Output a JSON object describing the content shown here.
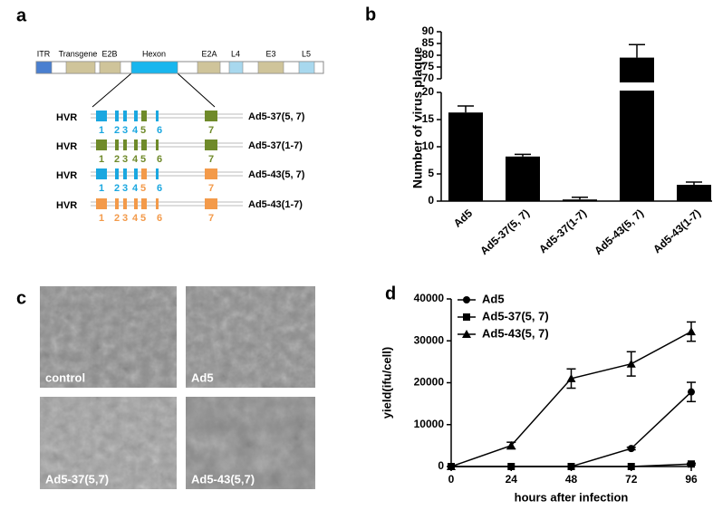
{
  "panels": {
    "a": {
      "letter": "a",
      "genome": [
        {
          "label": "ITR",
          "color": "#4a7fd0"
        },
        {
          "label": "Transgene",
          "color": "#cfc49a"
        },
        {
          "label": "E2B",
          "color": "#cfc49a"
        },
        {
          "label": "Hexon",
          "color": "#19b6ee"
        },
        {
          "label": "E2A",
          "color": "#cfc49a"
        },
        {
          "label": "L4",
          "color": "#a8d8ee"
        },
        {
          "label": "E3",
          "color": "#cfc49a"
        },
        {
          "label": "L5",
          "color": "#a8d8ee"
        }
      ],
      "constructs": [
        {
          "prefix": "HVR",
          "name": "Ad5-37(5, 7)",
          "hvrs": [
            {
              "label": "1",
              "color": "#1aa7e0"
            },
            {
              "label": "2",
              "color": "#1aa7e0"
            },
            {
              "label": "3",
              "color": "#1aa7e0"
            },
            {
              "label": "4",
              "color": "#1aa7e0"
            },
            {
              "label": "5",
              "color": "#6f8a2a"
            },
            {
              "label": "6",
              "color": "#1aa7e0"
            },
            {
              "label": "7",
              "color": "#6f8a2a"
            }
          ]
        },
        {
          "prefix": "HVR",
          "name": "Ad5-37(1-7)",
          "hvrs": [
            {
              "label": "1",
              "color": "#6f8a2a"
            },
            {
              "label": "2",
              "color": "#6f8a2a"
            },
            {
              "label": "3",
              "color": "#6f8a2a"
            },
            {
              "label": "4",
              "color": "#6f8a2a"
            },
            {
              "label": "5",
              "color": "#6f8a2a"
            },
            {
              "label": "6",
              "color": "#6f8a2a"
            },
            {
              "label": "7",
              "color": "#6f8a2a"
            }
          ]
        },
        {
          "prefix": "HVR",
          "name": "Ad5-43(5, 7)",
          "hvrs": [
            {
              "label": "1",
              "color": "#1aa7e0"
            },
            {
              "label": "2",
              "color": "#1aa7e0"
            },
            {
              "label": "3",
              "color": "#1aa7e0"
            },
            {
              "label": "4",
              "color": "#1aa7e0"
            },
            {
              "label": "5",
              "color": "#f39a4a"
            },
            {
              "label": "6",
              "color": "#1aa7e0"
            },
            {
              "label": "7",
              "color": "#f39a4a"
            }
          ]
        },
        {
          "prefix": "HVR",
          "name": "Ad5-43(1-7)",
          "hvrs": [
            {
              "label": "1",
              "color": "#f39a4a"
            },
            {
              "label": "2",
              "color": "#f39a4a"
            },
            {
              "label": "3",
              "color": "#f39a4a"
            },
            {
              "label": "4",
              "color": "#f39a4a"
            },
            {
              "label": "5",
              "color": "#f39a4a"
            },
            {
              "label": "6",
              "color": "#f39a4a"
            },
            {
              "label": "7",
              "color": "#f39a4a"
            }
          ]
        }
      ]
    },
    "c": {
      "letter": "c",
      "images": [
        {
          "label": "control"
        },
        {
          "label": "Ad5"
        },
        {
          "label": "Ad5-37(5,7)"
        },
        {
          "label": "Ad5-43(5,7)"
        }
      ]
    }
  },
  "chart_data": [
    {
      "type": "bar",
      "panel_label": "b",
      "ylabel": "Number of virus plaque",
      "categories": [
        "Ad5",
        "Ad5-37(5, 7)",
        "Ad5-37(1-7)",
        "Ad5-43(5, 7)",
        "Ad5-43(1-7)"
      ],
      "values": [
        16.3,
        8.2,
        0.3,
        79,
        3.0
      ],
      "errors": [
        1.2,
        0.4,
        0.4,
        5.5,
        0.5
      ],
      "color": "#000000",
      "ylim": [
        0,
        90
      ],
      "y_break": [
        20,
        70
      ],
      "yticks": [
        0,
        5,
        10,
        15,
        20,
        70,
        75,
        80,
        85,
        90
      ]
    },
    {
      "type": "line",
      "panel_label": "d",
      "xlabel": "hours after infection",
      "ylabel": "yield(ifu/cell)",
      "x": [
        0,
        24,
        48,
        72,
        96
      ],
      "xlim": [
        0,
        96
      ],
      "xticks": [
        0,
        24,
        48,
        72,
        96
      ],
      "ylim": [
        0,
        40000
      ],
      "yticks": [
        0,
        10000,
        20000,
        30000,
        40000
      ],
      "legend": "upper left",
      "series": [
        {
          "name": "Ad5",
          "color": "#000000",
          "marker": "circle",
          "values": [
            0,
            0,
            0,
            4300,
            17800
          ],
          "errors": [
            0,
            0,
            0,
            300,
            2300
          ]
        },
        {
          "name": "Ad5-37(5, 7)",
          "color": "#000000",
          "marker": "square",
          "values": [
            0,
            0,
            0,
            0,
            600
          ],
          "errors": [
            0,
            0,
            0,
            0,
            200
          ]
        },
        {
          "name": "Ad5-43(5, 7)",
          "color": "#000000",
          "marker": "triangle",
          "values": [
            0,
            5000,
            21000,
            24500,
            32200
          ],
          "errors": [
            0,
            800,
            2300,
            2900,
            2300
          ]
        }
      ]
    }
  ]
}
